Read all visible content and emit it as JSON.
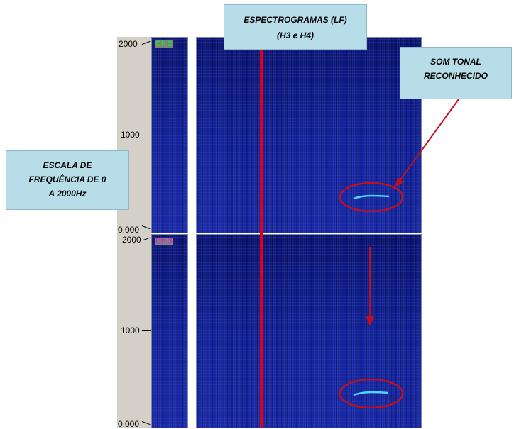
{
  "callouts": {
    "spectrograms_line1": "ESPECTROGRAMAS (LF)",
    "spectrograms_line2": "(H3 e H4)",
    "tonal_line1": "SOM TONAL",
    "tonal_line2": "RECONHECIDO",
    "scale_line1": "ESCALA DE",
    "scale_line2": "FREQUÊNCIA DE 0",
    "scale_line3": "A 2000Hz"
  },
  "channels": [
    {
      "label": "Ch 2",
      "label_color": "#00ff00"
    },
    {
      "label": "Ch 3",
      "label_color": "#ff00ff"
    }
  ],
  "axis": {
    "top": {
      "max": "2000",
      "mid": "1000",
      "min": "0.000"
    },
    "bottom": {
      "max": "2000",
      "mid": "1000",
      "min": "0.000"
    }
  },
  "colors": {
    "marker_line": "#e0001a",
    "annotation_red": "#c0101f",
    "tonal_trace": "#4fd6ff"
  }
}
